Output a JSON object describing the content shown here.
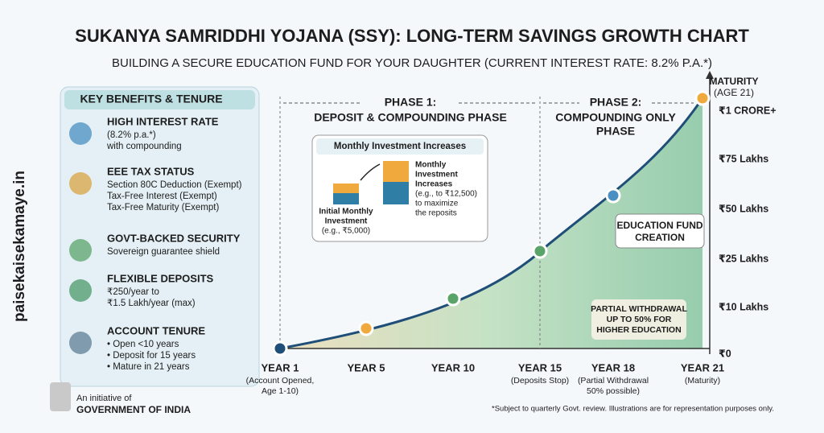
{
  "header": {
    "title": "SUKANYA SAMRIDDHI YOJANA (SSY): LONG-TERM SAVINGS GROWTH CHART",
    "subtitle": "BUILDING A SECURE EDUCATION FUND FOR YOUR DAUGHTER (CURRENT INTEREST RATE: 8.2% P.A.*)"
  },
  "sidebar": {
    "title": "KEY BENEFITS & TENURE",
    "items": [
      {
        "heading": "HIGH INTEREST RATE",
        "lines": [
          "(8.2% p.a.*)",
          "with compounding"
        ]
      },
      {
        "heading": "EEE TAX STATUS",
        "lines": [
          "Section 80C Deduction (Exempt)",
          "Tax-Free Interest (Exempt)",
          "Tax-Free Maturity (Exempt)"
        ]
      },
      {
        "heading": "GOVT-BACKED SECURITY",
        "lines": [
          "Sovereign guarantee shield"
        ]
      },
      {
        "heading": "FLEXIBLE DEPOSITS",
        "lines": [
          "₹250/year to",
          "₹1.5 Lakh/year (max)"
        ]
      },
      {
        "heading": "ACCOUNT TENURE",
        "lines": [
          "• Open <10 years",
          "• Deposit for 15 years",
          "• Mature in 21 years"
        ]
      }
    ]
  },
  "growth_chart": {
    "axis_title": [
      "MATURITY",
      "(AGE 21)"
    ],
    "y_labels": [
      "₹1 CRORE+",
      "₹75 Lakhs",
      "₹50 Lakhs",
      "₹25 Lakhs",
      "₹10 Lakhs",
      "₹0"
    ],
    "x_labels": [
      {
        "label": "YEAR 1",
        "note": [
          "(Account Opened,",
          "Age 1-10)"
        ]
      },
      {
        "label": "YEAR 5",
        "note": []
      },
      {
        "label": "YEAR 10",
        "note": []
      },
      {
        "label": "YEAR 15",
        "note": [
          "(Deposits Stop)"
        ]
      },
      {
        "label": "YEAR 18",
        "note": [
          "(Partial Withdrawal",
          "50% possible)"
        ]
      },
      {
        "label": "YEAR 21",
        "note": [
          "(Maturity)"
        ]
      }
    ],
    "phases": [
      [
        "PHASE 1:",
        "DEPOSIT & COMPOUNDING PHASE"
      ],
      [
        "PHASE 2:",
        "COMPOUNDING ONLY",
        "PHASE"
      ]
    ],
    "callout": {
      "title": "Monthly Investment Increases",
      "left": [
        "Initial Monthly",
        "Investment",
        "(e.g., ₹5,000)"
      ],
      "right": [
        "Monthly",
        "Investment",
        "Increases",
        "(e.g., to ₹12,500)",
        "to maximize",
        "the reposits"
      ]
    },
    "education": [
      "EDUCATION FUND",
      "CREATION"
    ],
    "withdrawal": [
      "PARTIAL WITHDRAWAL",
      "UP TO 50% FOR",
      "HIGHER EDUCATION"
    ]
  },
  "footer": {
    "initiative": "An initiative of",
    "government": "GOVERNMENT OF INDIA",
    "note": "*Subject to quarterly Govt. review. Illustrations are for representation purposes only."
  },
  "watermark": "paisekaisekamaye.in"
}
